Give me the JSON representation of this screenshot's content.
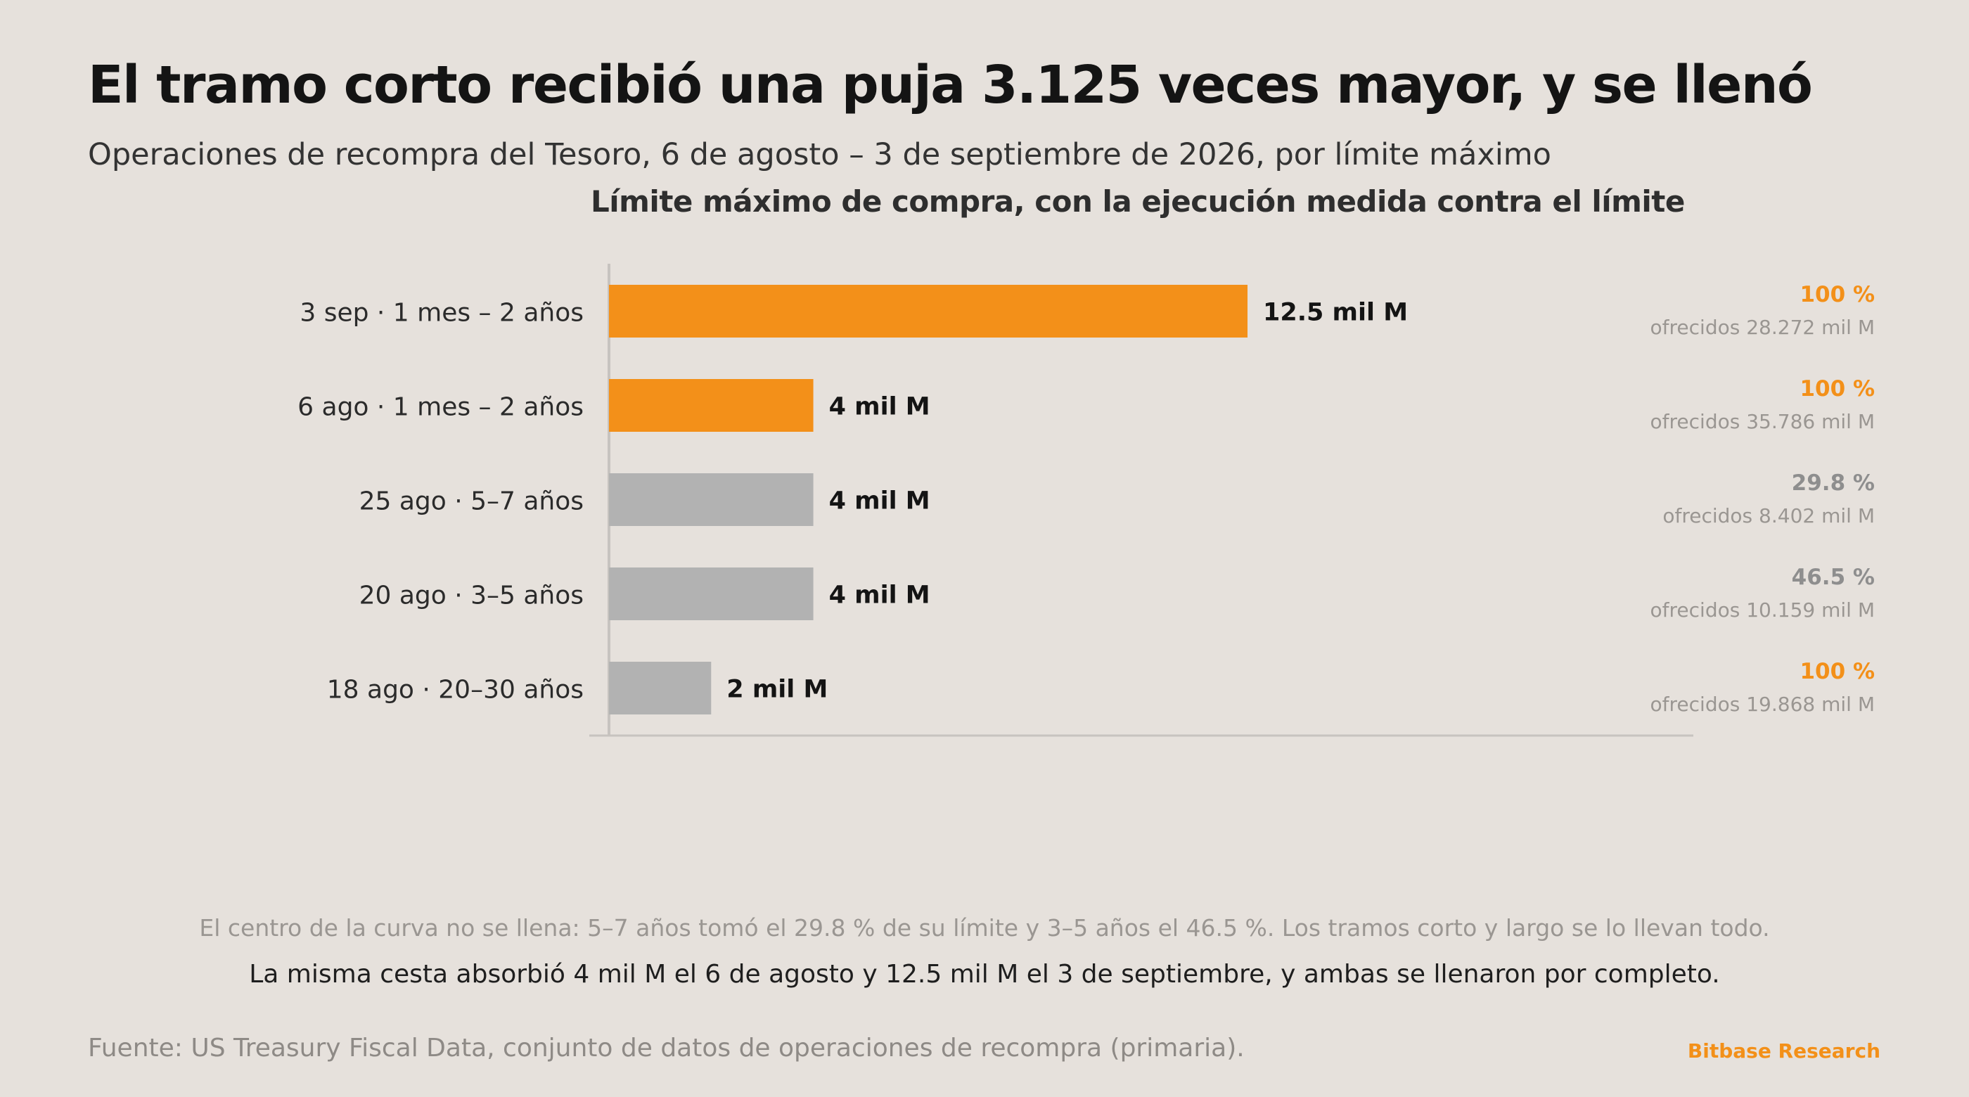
{
  "title": "El tramo corto recibió una puja 3.125 veces mayor, y se llenó",
  "subtitle": "Operaciones de recompra del Tesoro, 6 de agosto – 3 de septiembre de 2026, por límite máximo",
  "chart_data": {
    "type": "bar",
    "orientation": "horizontal",
    "title": "Límite máximo de compra, con la ejecución medida contra el límite",
    "xlabel": "",
    "ylabel": "",
    "xlim": [
      0,
      21.2
    ],
    "grid": false,
    "categories": [
      "3 sep · 1 mes – 2 años",
      "6 ago · 1 mes – 2 años",
      "25 ago · 5–7 años",
      "20 ago · 3–5 años",
      "18 ago · 20–30 años"
    ],
    "values": [
      12.5,
      4,
      4,
      4,
      2
    ],
    "value_labels": [
      "12.5 mil M",
      "4 mil M",
      "4 mil M",
      "4 mil M",
      "2 mil M"
    ],
    "execution_labels": [
      "100 %",
      "100 %",
      "29.8 %",
      "46.5 %",
      "100 %"
    ],
    "offered_labels": [
      "ofrecidos 28.272 mil M",
      "ofrecidos 35.786 mil M",
      "ofrecidos 8.402 mil M",
      "ofrecidos 10.159 mil M",
      "ofrecidos 19.868 mil M"
    ],
    "highlight": [
      true,
      true,
      false,
      false,
      false
    ],
    "exec_highlight": [
      true,
      true,
      false,
      false,
      true
    ],
    "colors": {
      "highlight": "#f39019",
      "muted": "#b2b2b2",
      "exec_muted": "#8e8e8e",
      "axis": "#c7c3bf"
    }
  },
  "notes": {
    "grey": "El centro de la curva no se llena: 5–7 años tomó el 29.8 % de su límite y 3–5 años el 46.5 %. Los tramos corto y largo se lo llevan todo.",
    "dark": "La misma cesta absorbió 4 mil M el 6 de agosto y 12.5 mil M el 3 de septiembre, y ambas se llenaron por completo."
  },
  "source": "Fuente: US Treasury Fiscal Data, conjunto de datos de operaciones de recompra (primaria).",
  "brand": "Bitbase Research"
}
